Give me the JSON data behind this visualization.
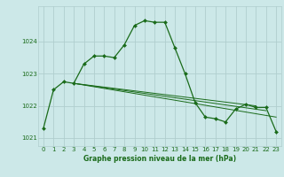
{
  "title": "Graphe pression niveau de la mer (hPa)",
  "background_color": "#cce8e8",
  "grid_color": "#b0cece",
  "line_color": "#1a6b1a",
  "marker_color": "#1a6b1a",
  "xlim": [
    -0.5,
    23.5
  ],
  "ylim": [
    1020.75,
    1025.1
  ],
  "yticks": [
    1021,
    1022,
    1023,
    1024
  ],
  "xticks": [
    0,
    1,
    2,
    3,
    4,
    5,
    6,
    7,
    8,
    9,
    10,
    11,
    12,
    13,
    14,
    15,
    16,
    17,
    18,
    19,
    20,
    21,
    22,
    23
  ],
  "series_x": [
    0,
    1,
    2,
    3,
    4,
    5,
    6,
    7,
    8,
    9,
    10,
    11,
    12,
    13,
    14,
    15,
    16,
    17,
    18,
    19,
    20,
    21,
    22,
    23
  ],
  "series_y": [
    1021.3,
    1022.5,
    1022.75,
    1022.7,
    1023.3,
    1023.55,
    1023.55,
    1023.5,
    1023.9,
    1024.5,
    1024.65,
    1024.6,
    1024.6,
    1023.8,
    1023.0,
    1022.1,
    1021.65,
    1021.6,
    1021.5,
    1021.9,
    1022.05,
    1021.95,
    1021.95,
    1021.2
  ],
  "extra_lines": [
    {
      "x": [
        3,
        23
      ],
      "y": [
        1022.7,
        1021.65
      ]
    },
    {
      "x": [
        3,
        22
      ],
      "y": [
        1022.7,
        1021.85
      ]
    },
    {
      "x": [
        3,
        21
      ],
      "y": [
        1022.7,
        1022.0
      ]
    }
  ]
}
